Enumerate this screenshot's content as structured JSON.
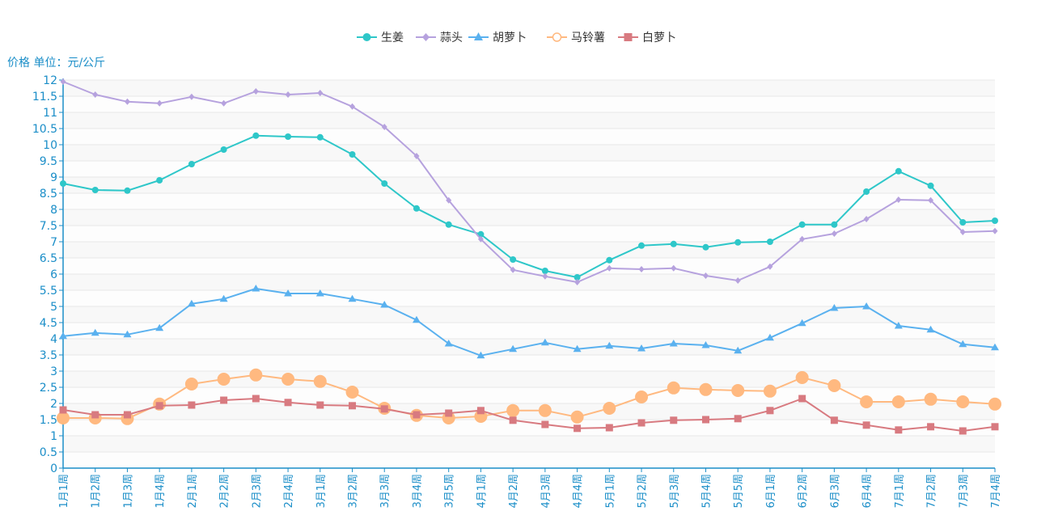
{
  "chart_data": {
    "type": "line",
    "title": "",
    "ylabel": "价格 单位：元/公斤",
    "xlabel": "",
    "ylim": [
      0,
      12
    ],
    "ytick_step": 0.5,
    "yticks": [
      "0",
      "0.5",
      "1",
      "1.5",
      "2",
      "2.5",
      "3",
      "3.5",
      "4",
      "4.5",
      "5",
      "5.5",
      "6",
      "6.5",
      "7",
      "7.5",
      "8",
      "8.5",
      "9",
      "9.5",
      "10",
      "10.5",
      "11",
      "11.5",
      "12"
    ],
    "grid": true,
    "legend_position": "top-center",
    "categories": [
      "1月1周",
      "1月2周",
      "1月3周",
      "1月4周",
      "2月1周",
      "2月2周",
      "2月3周",
      "2月4周",
      "3月1周",
      "3月2周",
      "3月3周",
      "3月4周",
      "3月5周",
      "4月1周",
      "4月2周",
      "4月3周",
      "4月4周",
      "5月1周",
      "5月2周",
      "5月3周",
      "5月4周",
      "5月5周",
      "6月1周",
      "6月2周",
      "6月3周",
      "6月4周",
      "7月1周",
      "7月2周",
      "7月3周",
      "7月4周"
    ],
    "series": [
      {
        "name": "生姜",
        "color": "#2ec7c9",
        "marker": "circle",
        "values": [
          8.8,
          8.6,
          8.58,
          8.9,
          9.4,
          9.85,
          10.28,
          10.25,
          10.23,
          9.7,
          8.8,
          8.03,
          7.53,
          7.23,
          6.45,
          6.1,
          5.9,
          6.43,
          6.88,
          6.93,
          6.83,
          6.98,
          7.0,
          7.53,
          7.53,
          8.55,
          9.18,
          8.73,
          7.6,
          7.65
        ]
      },
      {
        "name": "蒜头",
        "color": "#b6a2de",
        "marker": "diamond",
        "values": [
          11.95,
          11.55,
          11.33,
          11.28,
          11.48,
          11.28,
          11.65,
          11.55,
          11.6,
          11.18,
          10.55,
          9.65,
          8.28,
          7.08,
          6.13,
          5.93,
          5.75,
          6.18,
          6.15,
          6.18,
          5.95,
          5.8,
          6.23,
          7.08,
          7.25,
          7.7,
          8.3,
          8.28,
          7.3,
          7.33
        ]
      },
      {
        "name": "胡萝卜",
        "color": "#5ab1ef",
        "marker": "triangle",
        "values": [
          4.08,
          4.18,
          4.13,
          4.33,
          5.08,
          5.23,
          5.55,
          5.4,
          5.4,
          5.23,
          5.05,
          4.58,
          3.85,
          3.48,
          3.68,
          3.88,
          3.68,
          3.78,
          3.7,
          3.85,
          3.8,
          3.63,
          4.03,
          4.48,
          4.95,
          5.0,
          4.4,
          4.28,
          3.83,
          3.73
        ]
      },
      {
        "name": "马铃薯",
        "color": "#ffb980",
        "marker": "empty-circle",
        "values": [
          1.55,
          1.55,
          1.53,
          1.98,
          2.6,
          2.75,
          2.88,
          2.75,
          2.68,
          2.35,
          1.85,
          1.63,
          1.55,
          1.6,
          1.78,
          1.78,
          1.58,
          1.85,
          2.2,
          2.48,
          2.43,
          2.4,
          2.38,
          2.8,
          2.55,
          2.05,
          2.05,
          2.13,
          2.05,
          1.98
        ]
      },
      {
        "name": "白萝卜",
        "color": "#d87a80",
        "marker": "square",
        "values": [
          1.8,
          1.65,
          1.65,
          1.93,
          1.95,
          2.1,
          2.15,
          2.03,
          1.95,
          1.93,
          1.83,
          1.65,
          1.7,
          1.78,
          1.48,
          1.35,
          1.23,
          1.25,
          1.4,
          1.48,
          1.5,
          1.53,
          1.78,
          2.15,
          1.48,
          1.33,
          1.18,
          1.28,
          1.15,
          1.28
        ]
      }
    ],
    "colors": {
      "axis": "#1b8ec8",
      "grid": "#e8e8e8",
      "band_a": "#f8f8f8",
      "band_b": "#fdfdfd"
    }
  }
}
